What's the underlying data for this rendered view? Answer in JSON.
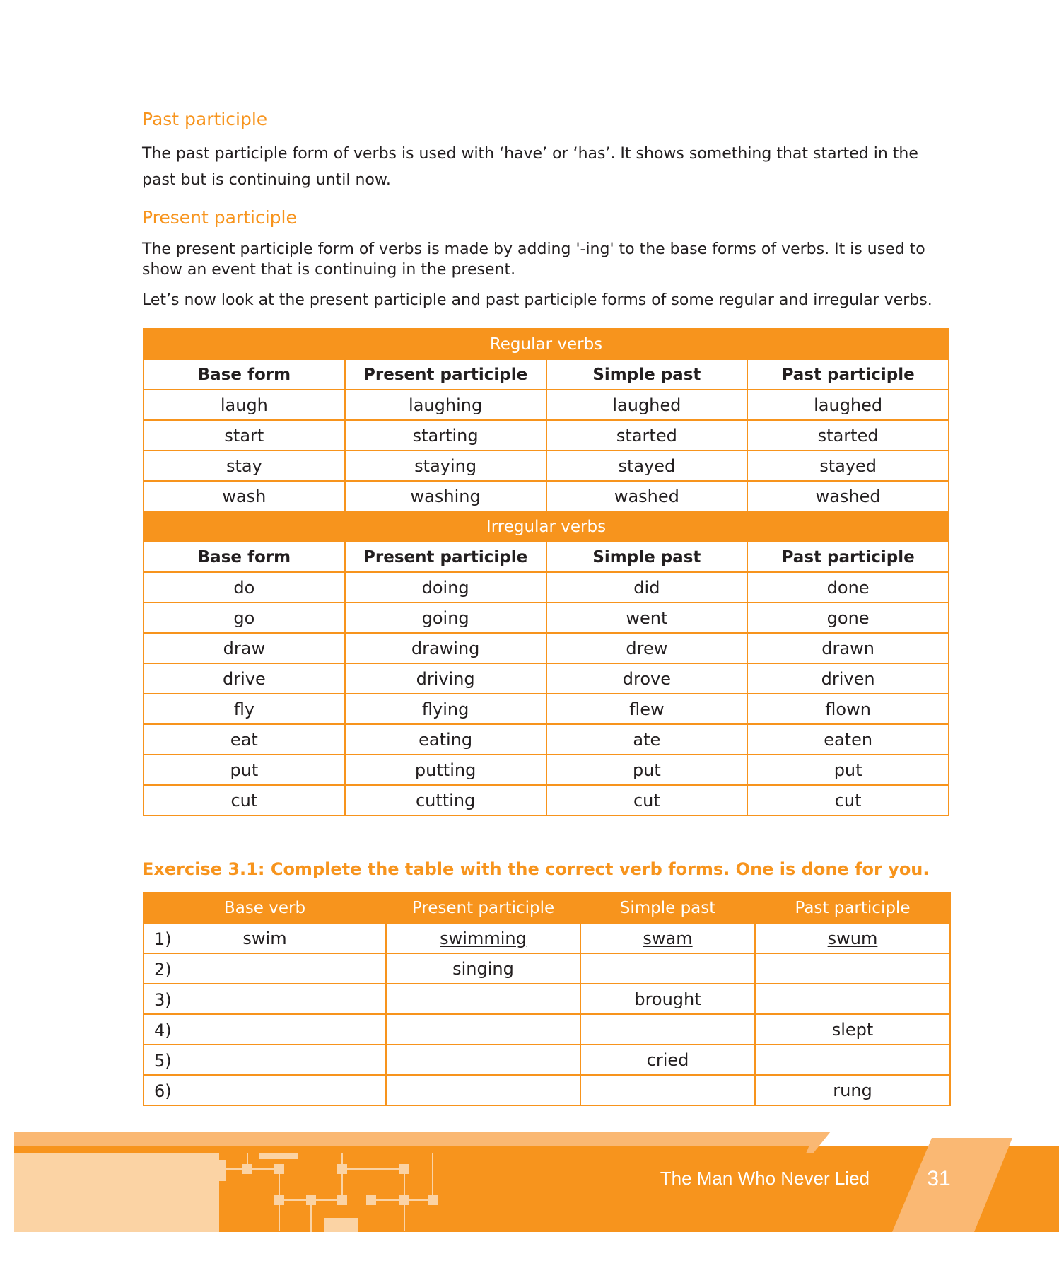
{
  "sections": [
    {
      "heading": "Past participle",
      "text": "The past participle form of verbs is used with ‘have’ or ‘has’. It shows something that started in the past but is continuing until now."
    },
    {
      "heading": "Present participle",
      "text": "The present participle form of verbs is made by adding '-ing' to the base forms of verbs. It is used to show an event that is continuing in the present."
    }
  ],
  "intro": "Let’s now look at the present participle and past participle forms of some regular and irregular verbs.",
  "verb_table": {
    "columns": [
      "Base form",
      "Present participle",
      "Simple past",
      "Past participle"
    ],
    "regular": {
      "title": "Regular verbs",
      "rows": [
        [
          "laugh",
          "laughing",
          "laughed",
          "laughed"
        ],
        [
          "start",
          "starting",
          "started",
          "started"
        ],
        [
          "stay",
          "staying",
          "stayed",
          "stayed"
        ],
        [
          "wash",
          "washing",
          "washed",
          "washed"
        ]
      ]
    },
    "irregular": {
      "title": "Irregular verbs",
      "rows": [
        [
          "do",
          "doing",
          "did",
          "done"
        ],
        [
          "go",
          "going",
          "went",
          "gone"
        ],
        [
          "draw",
          "drawing",
          "drew",
          "drawn"
        ],
        [
          "drive",
          "driving",
          "drove",
          "driven"
        ],
        [
          "fly",
          "flying",
          "flew",
          "flown"
        ],
        [
          "eat",
          "eating",
          "ate",
          "eaten"
        ],
        [
          "put",
          "putting",
          "put",
          "put"
        ],
        [
          "cut",
          "cutting",
          "cut",
          "cut"
        ]
      ]
    }
  },
  "exercise": {
    "title": "Exercise 3.1: Complete the table with the correct verb forms. One is done for you.",
    "columns": [
      "Base verb",
      "Present participle",
      "Simple past",
      "Past participle"
    ],
    "rows": [
      {
        "num": "1)",
        "cells": [
          "swim",
          "swimming",
          "swam",
          "swum"
        ]
      },
      {
        "num": "2)",
        "cells": [
          "",
          "singing",
          "",
          ""
        ]
      },
      {
        "num": "3)",
        "cells": [
          "",
          "",
          "brought",
          ""
        ]
      },
      {
        "num": "4)",
        "cells": [
          "",
          "",
          "",
          "slept"
        ]
      },
      {
        "num": "5)",
        "cells": [
          "",
          "",
          "cried",
          ""
        ]
      },
      {
        "num": "6)",
        "cells": [
          "",
          "",
          "",
          "rung"
        ]
      }
    ]
  },
  "footer": {
    "book_title": "The Man Who Never Lied",
    "page_number": "31"
  },
  "colors": {
    "accent": "#f7941d",
    "light": "#fab873",
    "pale": "#fbd3a4"
  }
}
